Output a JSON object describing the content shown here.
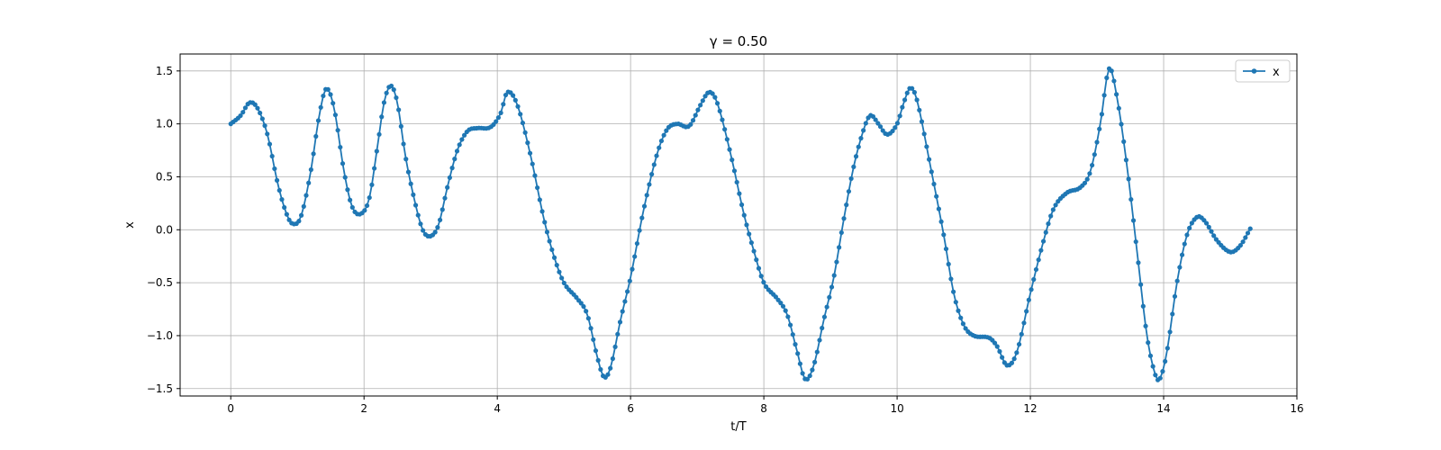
{
  "chart_data": {
    "type": "line",
    "title": "γ = 0.50",
    "xlabel": "t/T",
    "ylabel": "x",
    "xlim": [
      -0.76,
      16.0
    ],
    "ylim": [
      -1.57,
      1.66
    ],
    "xticks": [
      0,
      2,
      4,
      6,
      8,
      10,
      12,
      14,
      16
    ],
    "yticks": [
      -1.5,
      -1.0,
      -0.5,
      0.0,
      0.5,
      1.0,
      1.5
    ],
    "grid": true,
    "legend": "top-right",
    "series": [
      {
        "name": "x",
        "color": "#1f77b4",
        "marker": "circle",
        "x_start": 0.0,
        "x_end": 15.3,
        "keypoints": [
          [
            0.0,
            1.0
          ],
          [
            0.15,
            1.08
          ],
          [
            0.28,
            1.2
          ],
          [
            0.4,
            1.15
          ],
          [
            0.55,
            0.9
          ],
          [
            0.7,
            0.45
          ],
          [
            0.82,
            0.18
          ],
          [
            0.92,
            0.06
          ],
          [
            1.05,
            0.12
          ],
          [
            1.2,
            0.55
          ],
          [
            1.32,
            1.05
          ],
          [
            1.43,
            1.33
          ],
          [
            1.55,
            1.15
          ],
          [
            1.7,
            0.55
          ],
          [
            1.82,
            0.22
          ],
          [
            1.95,
            0.15
          ],
          [
            2.08,
            0.3
          ],
          [
            2.2,
            0.78
          ],
          [
            2.3,
            1.2
          ],
          [
            2.4,
            1.36
          ],
          [
            2.5,
            1.2
          ],
          [
            2.62,
            0.7
          ],
          [
            2.75,
            0.3
          ],
          [
            2.88,
            0.0
          ],
          [
            3.0,
            -0.06
          ],
          [
            3.12,
            0.05
          ],
          [
            3.25,
            0.4
          ],
          [
            3.4,
            0.75
          ],
          [
            3.55,
            0.93
          ],
          [
            3.7,
            0.96
          ],
          [
            3.9,
            0.97
          ],
          [
            4.05,
            1.1
          ],
          [
            4.15,
            1.3
          ],
          [
            4.3,
            1.18
          ],
          [
            4.5,
            0.7
          ],
          [
            4.7,
            0.1
          ],
          [
            4.85,
            -0.25
          ],
          [
            5.0,
            -0.5
          ],
          [
            5.2,
            -0.65
          ],
          [
            5.35,
            -0.8
          ],
          [
            5.5,
            -1.2
          ],
          [
            5.6,
            -1.39
          ],
          [
            5.7,
            -1.3
          ],
          [
            5.85,
            -0.85
          ],
          [
            6.0,
            -0.45
          ],
          [
            6.2,
            0.2
          ],
          [
            6.4,
            0.72
          ],
          [
            6.55,
            0.95
          ],
          [
            6.7,
            1.0
          ],
          [
            6.88,
            0.98
          ],
          [
            7.05,
            1.18
          ],
          [
            7.18,
            1.3
          ],
          [
            7.3,
            1.2
          ],
          [
            7.5,
            0.72
          ],
          [
            7.7,
            0.15
          ],
          [
            7.85,
            -0.2
          ],
          [
            8.0,
            -0.5
          ],
          [
            8.2,
            -0.65
          ],
          [
            8.35,
            -0.8
          ],
          [
            8.5,
            -1.15
          ],
          [
            8.62,
            -1.41
          ],
          [
            8.75,
            -1.28
          ],
          [
            8.9,
            -0.85
          ],
          [
            9.05,
            -0.45
          ],
          [
            9.2,
            0.1
          ],
          [
            9.35,
            0.6
          ],
          [
            9.5,
            0.95
          ],
          [
            9.6,
            1.08
          ],
          [
            9.72,
            1.0
          ],
          [
            9.85,
            0.9
          ],
          [
            10.0,
            1.0
          ],
          [
            10.1,
            1.2
          ],
          [
            10.2,
            1.34
          ],
          [
            10.3,
            1.22
          ],
          [
            10.5,
            0.6
          ],
          [
            10.7,
            -0.05
          ],
          [
            10.85,
            -0.6
          ],
          [
            11.0,
            -0.9
          ],
          [
            11.15,
            -1.0
          ],
          [
            11.38,
            -1.02
          ],
          [
            11.5,
            -1.1
          ],
          [
            11.65,
            -1.28
          ],
          [
            11.8,
            -1.15
          ],
          [
            12.0,
            -0.6
          ],
          [
            12.2,
            -0.1
          ],
          [
            12.35,
            0.2
          ],
          [
            12.55,
            0.35
          ],
          [
            12.75,
            0.4
          ],
          [
            12.9,
            0.55
          ],
          [
            13.05,
            1.0
          ],
          [
            13.18,
            1.52
          ],
          [
            13.3,
            1.25
          ],
          [
            13.45,
            0.6
          ],
          [
            13.6,
            -0.2
          ],
          [
            13.75,
            -1.0
          ],
          [
            13.88,
            -1.38
          ],
          [
            13.95,
            -1.4
          ],
          [
            14.05,
            -1.15
          ],
          [
            14.2,
            -0.5
          ],
          [
            14.35,
            -0.05
          ],
          [
            14.5,
            0.12
          ],
          [
            14.62,
            0.08
          ],
          [
            14.8,
            -0.1
          ],
          [
            15.0,
            -0.21
          ],
          [
            15.15,
            -0.15
          ],
          [
            15.3,
            0.01
          ]
        ]
      }
    ]
  }
}
